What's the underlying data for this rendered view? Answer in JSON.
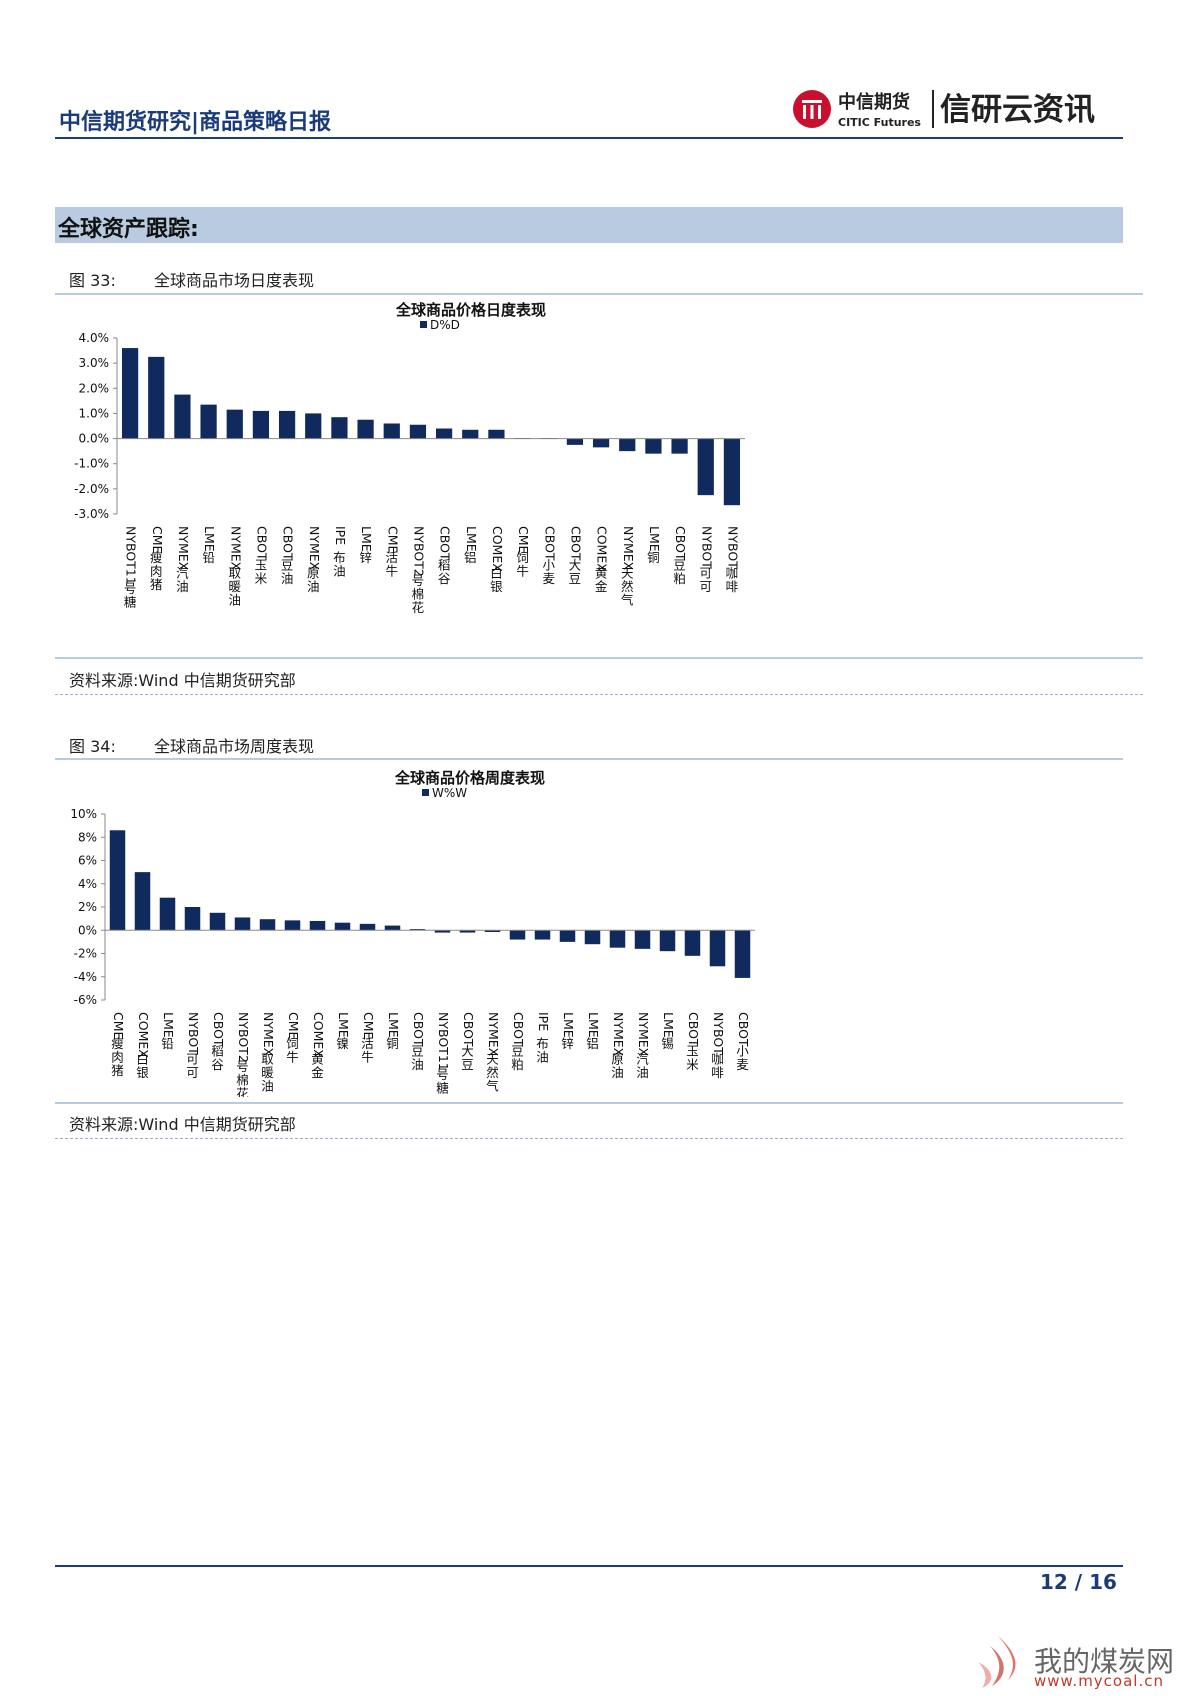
{
  "header": {
    "report_title": "中信期货研究|商品策略日报",
    "logo_cn": "中信期货",
    "logo_en": "CITIC Futures",
    "brand": "信研云资讯"
  },
  "section": {
    "title": "全球资产跟踪:"
  },
  "figures": [
    {
      "number": "图 33:",
      "title": "全球商品市场日度表现",
      "source": "资料来源:Wind 中信期货研究部"
    },
    {
      "number": "图 34:",
      "title": "全球商品市场周度表现",
      "source": "资料来源:Wind 中信期货研究部"
    }
  ],
  "colors": {
    "bar": "#102a5e",
    "accent": "#1b3a78",
    "section_bg": "#b8cbe0",
    "logo_red": "#c8102e"
  },
  "chart_data": [
    {
      "type": "bar",
      "title": "全球商品价格日度表现",
      "legend": [
        "D%D"
      ],
      "legend_position": "top",
      "ylim": [
        -3,
        4
      ],
      "yticks": [
        4,
        3,
        2,
        1,
        0,
        -1,
        -2,
        -3
      ],
      "ytick_labels": [
        "4.0%",
        "3.0%",
        "2.0%",
        "1.0%",
        "0.0%",
        "-1.0%",
        "-2.0%",
        "-3.0%"
      ],
      "grid": false,
      "categories": [
        "NYBOT11号糖",
        "CME瘦肉猪",
        "NYMEX汽油",
        "LME铅",
        "NYMEX取暖油",
        "CBOT玉米",
        "CBOT豆油",
        "NYMEX原油",
        "IPE布油",
        "LME锌",
        "CME活牛",
        "NYBOT2号棉花",
        "CBOT稻谷",
        "LME铝",
        "COMEX白银",
        "CME饲牛",
        "CBOT小麦",
        "CBOT大豆",
        "COMEX黄金",
        "NYMEX天然气",
        "LME铜",
        "CBOT豆粕",
        "NYBOT可可",
        "NYBOT咖啡"
      ],
      "series": [
        {
          "name": "D%D",
          "values": [
            3.6,
            3.25,
            1.75,
            1.35,
            1.15,
            1.1,
            1.1,
            1.0,
            0.85,
            0.75,
            0.6,
            0.55,
            0.4,
            0.35,
            0.35,
            0.02,
            0.02,
            -0.25,
            -0.35,
            -0.5,
            -0.6,
            -0.6,
            -2.25,
            -2.65
          ]
        }
      ]
    },
    {
      "type": "bar",
      "title": "全球商品价格周度表现",
      "legend": [
        "W%W"
      ],
      "legend_position": "top",
      "ylim": [
        -6,
        10
      ],
      "yticks": [
        10,
        8,
        6,
        4,
        2,
        0,
        -2,
        -4,
        -6
      ],
      "ytick_labels": [
        "10%",
        "8%",
        "6%",
        "4%",
        "2%",
        "0%",
        "-2%",
        "-4%",
        "-6%"
      ],
      "grid": false,
      "categories": [
        "CME瘦肉猪",
        "COMEX白银",
        "LME铅",
        "NYBOT可可",
        "CBOT稻谷",
        "NYBOT2号棉花",
        "NYMEX取暖油",
        "CME饲牛",
        "COMEX黄金",
        "LME镍",
        "CME活牛",
        "LME铜",
        "CBOT豆油",
        "NYBOT11号糖",
        "CBOT大豆",
        "NYMEX天然气",
        "CBOT豆粕",
        "IPE布油",
        "LME锌",
        "LME铝",
        "NYMEX原油",
        "NYMEX汽油",
        "LME锡",
        "CBOT玉米",
        "NYBOT咖啡",
        "CBOT小麦"
      ],
      "series": [
        {
          "name": "W%W",
          "values": [
            8.6,
            5.0,
            2.8,
            2.0,
            1.5,
            1.1,
            0.95,
            0.85,
            0.8,
            0.65,
            0.55,
            0.4,
            0.1,
            -0.2,
            -0.2,
            -0.15,
            -0.8,
            -0.8,
            -1.0,
            -1.2,
            -1.5,
            -1.6,
            -1.8,
            -2.2,
            -3.1,
            -4.1
          ]
        }
      ]
    }
  ],
  "footer": {
    "page": "12 / 16"
  },
  "watermark": {
    "text": "我的煤炭网",
    "url": "www.mycoal.cn"
  }
}
